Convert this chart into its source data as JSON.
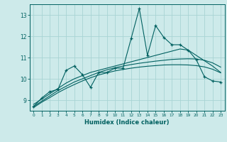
{
  "xlabel": "Humidex (Indice chaleur)",
  "x_values": [
    0,
    1,
    2,
    3,
    4,
    5,
    6,
    7,
    8,
    9,
    10,
    11,
    12,
    13,
    14,
    15,
    16,
    17,
    18,
    19,
    20,
    21,
    22,
    23
  ],
  "main_line": [
    8.7,
    9.1,
    9.4,
    9.5,
    10.4,
    10.6,
    10.2,
    9.6,
    10.3,
    10.3,
    10.5,
    10.5,
    11.9,
    13.3,
    11.1,
    12.5,
    11.95,
    11.6,
    11.6,
    11.35,
    10.9,
    10.1,
    9.9,
    9.85
  ],
  "smooth_line1": [
    8.8,
    9.05,
    9.3,
    9.55,
    9.8,
    10.0,
    10.15,
    10.3,
    10.4,
    10.5,
    10.6,
    10.7,
    10.8,
    10.9,
    11.0,
    11.1,
    11.2,
    11.3,
    11.4,
    11.35,
    11.1,
    10.85,
    10.6,
    10.3
  ],
  "smooth_line2": [
    8.7,
    8.95,
    9.2,
    9.45,
    9.65,
    9.85,
    10.0,
    10.15,
    10.3,
    10.42,
    10.52,
    10.6,
    10.67,
    10.73,
    10.78,
    10.83,
    10.87,
    10.91,
    10.93,
    10.94,
    10.93,
    10.87,
    10.75,
    10.55
  ],
  "smooth_line3": [
    8.65,
    8.9,
    9.12,
    9.35,
    9.55,
    9.73,
    9.9,
    10.05,
    10.18,
    10.28,
    10.37,
    10.44,
    10.5,
    10.55,
    10.59,
    10.62,
    10.65,
    10.66,
    10.66,
    10.65,
    10.62,
    10.56,
    10.45,
    10.28
  ],
  "line_color": "#006060",
  "bg_color": "#cdeaea",
  "grid_color": "#a8d4d4",
  "ylim": [
    8.5,
    13.5
  ],
  "xlim": [
    -0.5,
    23.5
  ],
  "yticks": [
    9,
    10,
    11,
    12,
    13
  ]
}
